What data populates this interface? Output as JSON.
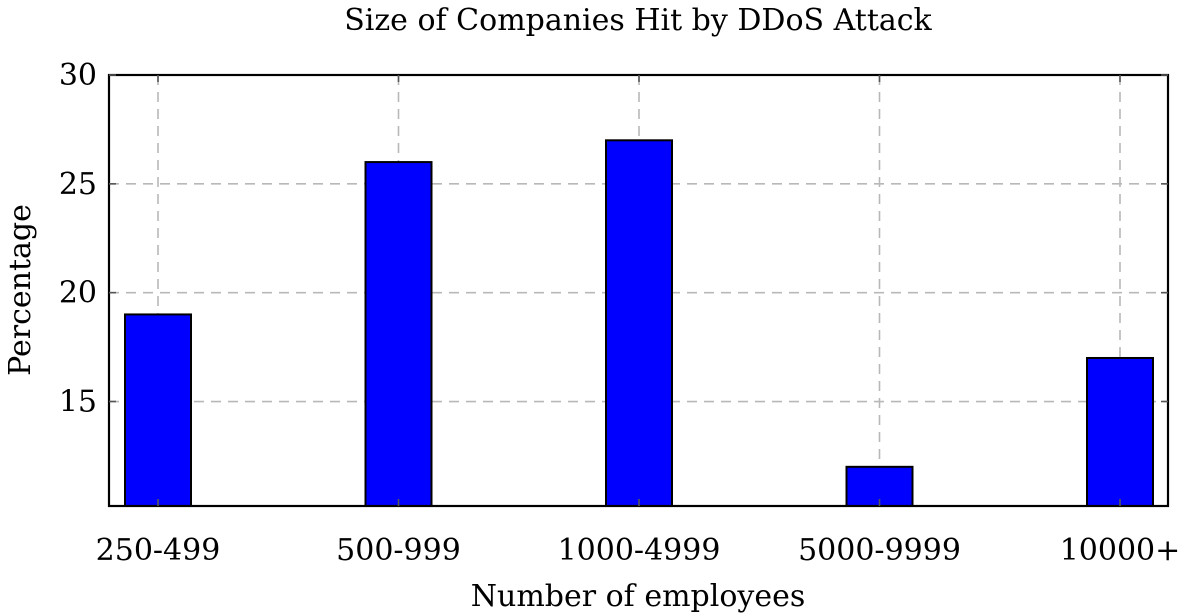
{
  "chart_data": {
    "type": "bar",
    "title": "Size of Companies Hit by DDoS Attack",
    "xlabel": "Number of employees",
    "ylabel": "Percentage",
    "categories": [
      "250-499",
      "500-999",
      "1000-4999",
      "5000-9999",
      "10000+"
    ],
    "values": [
      19,
      26,
      27,
      12,
      17
    ],
    "ylim": [
      10.2,
      30
    ],
    "yticks": [
      15,
      20,
      25,
      30
    ],
    "grid": true,
    "bar_color": "#0000ff"
  }
}
